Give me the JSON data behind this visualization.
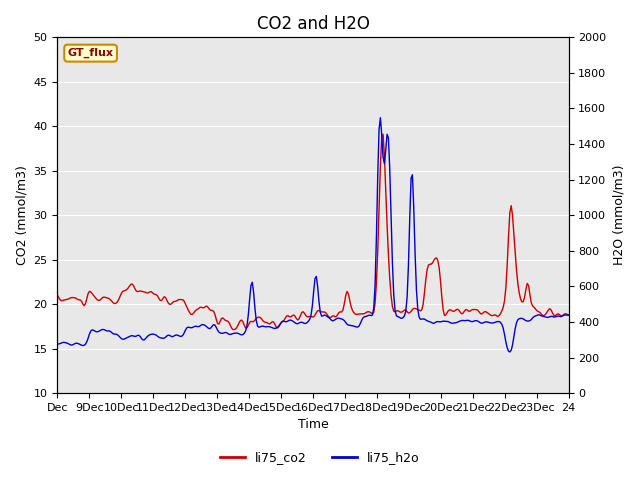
{
  "title": "CO2 and H2O",
  "xlabel": "Time",
  "ylabel_left": "CO2 (mmol/m3)",
  "ylabel_right": "H2O (mmol/m3)",
  "ylim_left": [
    10,
    50
  ],
  "ylim_right": [
    0,
    2000
  ],
  "yticks_left": [
    10,
    15,
    20,
    25,
    30,
    35,
    40,
    45,
    50
  ],
  "yticks_right": [
    0,
    200,
    400,
    600,
    800,
    1000,
    1200,
    1400,
    1600,
    1800,
    2000
  ],
  "color_co2": "#cc0000",
  "color_h2o": "#0000cc",
  "bg_color": "#e8e8e8",
  "box_label": "GT_flux",
  "box_facecolor": "#ffffcc",
  "box_edgecolor": "#cc8800",
  "legend_entries": [
    "li75_co2",
    "li75_h2o"
  ],
  "title_fontsize": 12,
  "axis_fontsize": 9,
  "tick_fontsize": 8
}
